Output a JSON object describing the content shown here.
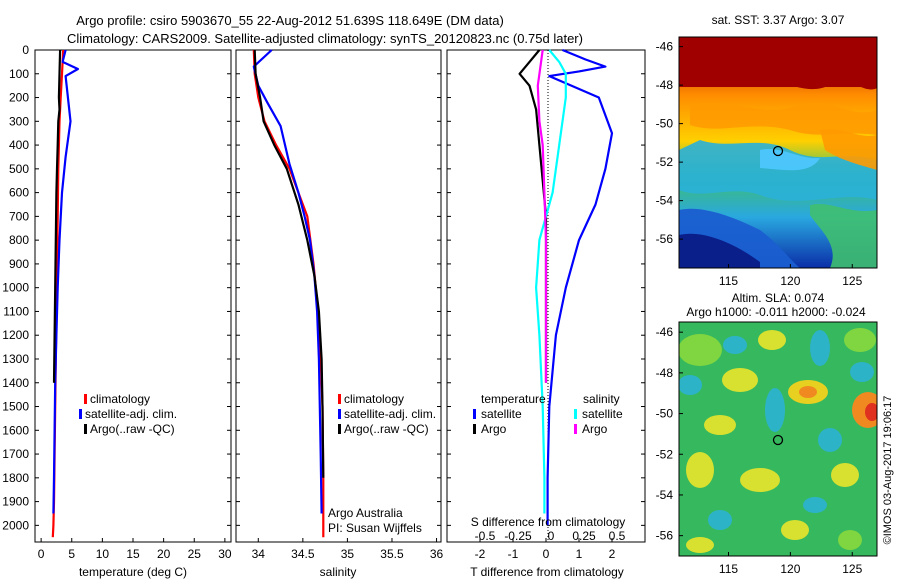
{
  "header": {
    "title_line1": "Argo profile: csiro 5903670_55 22-Aug-2012 51.639S 118.649E (DM data)",
    "title_line2": "Climatology: CARS2009. Satellite-adjusted climatology: synTS_20120823.nc (0.75d later)"
  },
  "colors": {
    "climatology": "#ff0000",
    "satellite": "#0000ff",
    "argo": "#000000",
    "salinity_satellite": "#00ffff",
    "salinity_argo": "#ff00ff"
  },
  "depth_ticks": [
    "0",
    "100",
    "200",
    "300",
    "400",
    "500",
    "600",
    "700",
    "800",
    "900",
    "1000",
    "1100",
    "1200",
    "1300",
    "1400",
    "1500",
    "1600",
    "1700",
    "1800",
    "1900",
    "2000"
  ],
  "panels": {
    "temperature": {
      "xlabel": "temperature (deg C)",
      "xticks": [
        "0",
        "5",
        "10",
        "15",
        "20",
        "25",
        "30"
      ],
      "legend": [
        "climatology",
        "satellite-adj. clim.",
        "Argo(..raw -QC)"
      ]
    },
    "salinity": {
      "xlabel": "salinity",
      "xticks": [
        "34",
        "34.5",
        "35",
        "35.5",
        "36"
      ],
      "legend": [
        "climatology",
        "satellite-adj. clim.",
        "Argo(..raw -QC)"
      ],
      "note_line1": "Argo Australia",
      "note_line2": "PI: Susan Wijffels"
    },
    "difference": {
      "xlabel": "T difference from climatology",
      "top_label": "S difference from climatology",
      "xticks_T": [
        "-2",
        "-1",
        "0",
        "1",
        "2"
      ],
      "xticks_S": [
        "-0.5",
        "-0.25",
        "0",
        "0.25",
        "0.5"
      ],
      "legend_temp_title": "temperature",
      "legend_sal_title": "salinity",
      "legend_temp": [
        "satellite",
        "Argo"
      ],
      "legend_sal": [
        "satellite",
        "Argo"
      ]
    },
    "sst_map": {
      "title": "sat. SST: 3.37  Argo: 3.07",
      "yticks": [
        "-46",
        "-48",
        "-50",
        "-52",
        "-54",
        "-56"
      ],
      "xticks": [
        "115",
        "120",
        "125"
      ]
    },
    "sla_map": {
      "title_line1": "Altim. SLA: 0.074",
      "title_line2": "Argo h1000: -0.011  h2000: -0.024",
      "yticks": [
        "-46",
        "-48",
        "-50",
        "-52",
        "-54",
        "-56"
      ],
      "xticks": [
        "115",
        "120",
        "125"
      ]
    }
  },
  "footer": {
    "stamp": "©IMOS 03-Aug-2017 19:06:17"
  },
  "chart_data": [
    {
      "type": "line",
      "name": "temperature",
      "xlabel": "temperature (deg C)",
      "ylabel": "",
      "xlim": [
        -1,
        31
      ],
      "ylim": [
        2070,
        0
      ],
      "series": [
        {
          "name": "climatology",
          "color": "#ff0000",
          "x": [
            3.6,
            3.4,
            3.2,
            3.0,
            2.9,
            2.8,
            2.7,
            2.6,
            2.5,
            2.4,
            2.3,
            2.2,
            2.1,
            2.0,
            1.9
          ],
          "y": [
            0,
            100,
            200,
            300,
            400,
            500,
            700,
            900,
            1100,
            1300,
            1500,
            1700,
            1900,
            2000,
            2050
          ]
        },
        {
          "name": "satellite-adj. clim.",
          "color": "#0000ff",
          "x": [
            4.0,
            3.5,
            6.0,
            4.0,
            4.8,
            4.0,
            3.4,
            3.0,
            2.7,
            2.5,
            2.3,
            2.2,
            2.1,
            2.0
          ],
          "y": [
            0,
            50,
            80,
            110,
            300,
            450,
            600,
            800,
            1000,
            1200,
            1400,
            1600,
            1800,
            1950
          ]
        },
        {
          "name": "Argo(..raw -QC)",
          "color": "#000000",
          "x": [
            3.1,
            3.0,
            2.9,
            3.0,
            2.8,
            2.7,
            2.6,
            2.5,
            2.4,
            2.3,
            2.2,
            2.1
          ],
          "y": [
            0,
            100,
            200,
            250,
            300,
            400,
            500,
            600,
            800,
            1000,
            1200,
            1400
          ]
        }
      ]
    },
    {
      "type": "line",
      "name": "salinity",
      "xlabel": "salinity",
      "ylabel": "",
      "xlim": [
        33.75,
        36.05
      ],
      "ylim": [
        2070,
        0
      ],
      "series": [
        {
          "name": "climatology",
          "color": "#ff0000",
          "x": [
            33.95,
            33.96,
            34.0,
            34.07,
            34.2,
            34.35,
            34.45,
            34.55,
            34.62,
            34.67,
            34.7,
            34.72,
            34.73,
            34.73
          ],
          "y": [
            0,
            100,
            200,
            300,
            400,
            500,
            600,
            700,
            900,
            1100,
            1300,
            1500,
            1800,
            2050
          ]
        },
        {
          "name": "satellite-adj. clim.",
          "color": "#0000ff",
          "x": [
            34.15,
            33.95,
            34.0,
            34.1,
            34.25,
            34.35,
            34.45,
            34.52,
            34.58,
            34.63,
            34.66,
            34.68,
            34.69,
            34.7,
            34.71
          ],
          "y": [
            0,
            70,
            150,
            220,
            320,
            480,
            600,
            700,
            800,
            950,
            1100,
            1300,
            1500,
            1700,
            1950
          ]
        },
        {
          "name": "Argo(..raw -QC)",
          "color": "#000000",
          "x": [
            33.96,
            33.97,
            34.02,
            34.06,
            34.18,
            34.32,
            34.45,
            34.55,
            34.63,
            34.68,
            34.71,
            34.72,
            34.73
          ],
          "y": [
            0,
            100,
            200,
            300,
            400,
            500,
            650,
            800,
            950,
            1100,
            1300,
            1500,
            1800
          ]
        }
      ]
    },
    {
      "type": "line",
      "name": "difference from climatology",
      "xlabel": "T difference from climatology",
      "ylabel": "",
      "xlim": [
        -3,
        3
      ],
      "ylim": [
        2070,
        0
      ],
      "series": [
        {
          "name": "temperature satellite",
          "color": "#0000ff",
          "x": [
            0.5,
            1.2,
            1.8,
            1.0,
            0.1,
            1.6,
            2.0,
            1.8,
            1.5,
            1.0,
            0.6,
            0.3,
            0.1,
            0.05,
            0.05
          ],
          "y": [
            0,
            40,
            70,
            90,
            110,
            200,
            350,
            500,
            650,
            800,
            1000,
            1200,
            1500,
            1800,
            2000
          ]
        },
        {
          "name": "temperature Argo",
          "color": "#000000",
          "x": [
            -0.2,
            -0.5,
            -0.8,
            -0.5,
            -0.3,
            -0.2,
            -0.1,
            0,
            0
          ],
          "y": [
            0,
            50,
            100,
            150,
            250,
            400,
            550,
            700,
            1400
          ]
        },
        {
          "name": "salinity satellite",
          "color": "#00ffff",
          "x": [
            0.1,
            0.4,
            0.6,
            0.6,
            0.4,
            0.2,
            -0.2,
            -0.3,
            -0.2,
            -0.1,
            -0.05,
            -0.05
          ],
          "y": [
            0,
            50,
            100,
            200,
            400,
            600,
            800,
            1000,
            1200,
            1500,
            1800,
            1950
          ]
        },
        {
          "name": "salinity Argo",
          "color": "#ff00ff",
          "x": [
            -0.1,
            -0.25,
            -0.2,
            -0.1,
            -0.05,
            0,
            0
          ],
          "y": [
            0,
            150,
            300,
            400,
            600,
            800,
            1400
          ]
        }
      ]
    },
    {
      "type": "heatmap",
      "name": "sat. SST",
      "title": "sat. SST: 3.37  Argo: 3.07",
      "xlim": [
        111,
        127
      ],
      "ylim": [
        -57.5,
        -45.5
      ],
      "marker": {
        "lon": 118.649,
        "lat": -51.639
      }
    },
    {
      "type": "heatmap",
      "name": "Altim. SLA",
      "title": "Altim. SLA: 0.074",
      "xlim": [
        111,
        127
      ],
      "ylim": [
        -57,
        -45.5
      ],
      "marker": {
        "lon": 118.649,
        "lat": -51.639
      }
    }
  ]
}
